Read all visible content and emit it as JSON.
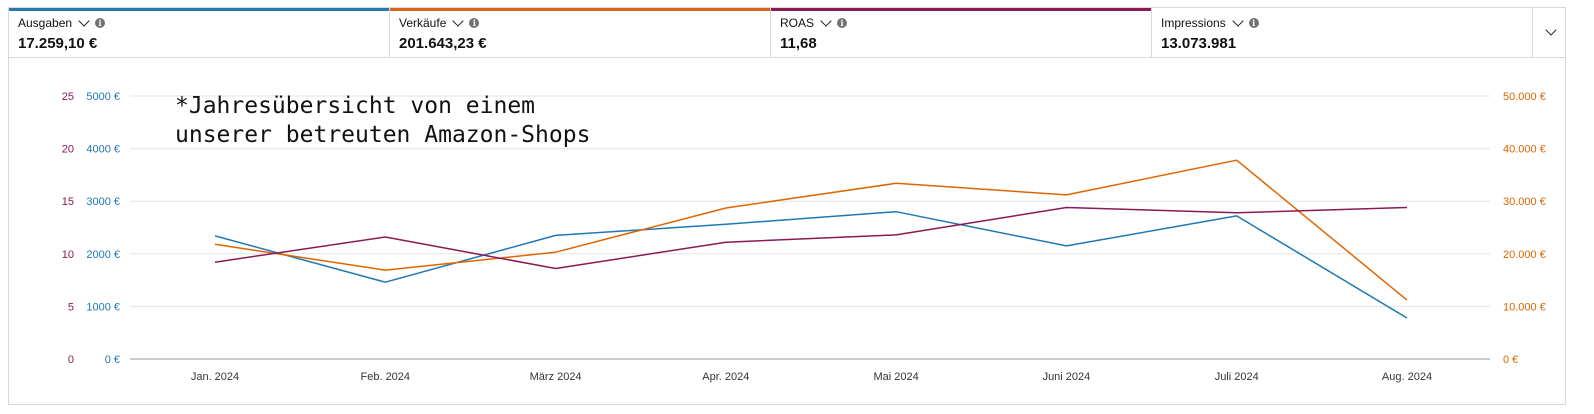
{
  "metrics": [
    {
      "label": "Ausgaben",
      "value": "17.259,10 €",
      "color": "#1f77b4"
    },
    {
      "label": "Verkäufe",
      "value": "201.643,23 €",
      "color": "#e06500"
    },
    {
      "label": "ROAS",
      "value": "11,68",
      "color": "#8a1a55"
    },
    {
      "label": "Impressions",
      "value": "13.073.981",
      "color": "#ffffff"
    }
  ],
  "note": "*Jahresübersicht von einem\nunserer betreuten Amazon-Shops",
  "chart_data": {
    "type": "line",
    "categories": [
      "Jan. 2024",
      "Feb. 2024",
      "März 2024",
      "Apr. 2024",
      "Mai 2024",
      "Juni 2024",
      "Juli 2024",
      "Aug. 2024"
    ],
    "axes": {
      "roas": {
        "ticks": [
          "0",
          "5",
          "10",
          "15",
          "20",
          "25"
        ],
        "min": 0,
        "max": 25,
        "color": "#8a1a55"
      },
      "ausgaben": {
        "ticks": [
          "0 €",
          "1000 €",
          "2000 €",
          "3000 €",
          "4000 €",
          "5000 €"
        ],
        "min": 0,
        "max": 5000,
        "color": "#1f77b4"
      },
      "verkaeufe": {
        "ticks": [
          "0 €",
          "10.000 €",
          "20.000 €",
          "30.000 €",
          "40.000 €",
          "50.000 €"
        ],
        "min": 0,
        "max": 50000,
        "color": "#e06500"
      }
    },
    "series": [
      {
        "name": "Ausgaben",
        "axis": "ausgaben",
        "color": "#1f77b4",
        "values": [
          2340,
          1460,
          2350,
          2560,
          2800,
          2150,
          2720,
          780
        ]
      },
      {
        "name": "Verkäufe",
        "axis": "verkaeufe",
        "color": "#e06500",
        "values": [
          21800,
          16900,
          20300,
          28700,
          33400,
          31200,
          37800,
          11200
        ]
      },
      {
        "name": "ROAS",
        "axis": "roas",
        "color": "#8a1a55",
        "values": [
          9.2,
          11.6,
          8.6,
          11.1,
          11.8,
          14.4,
          13.9,
          14.4
        ]
      }
    ],
    "grid": true
  }
}
